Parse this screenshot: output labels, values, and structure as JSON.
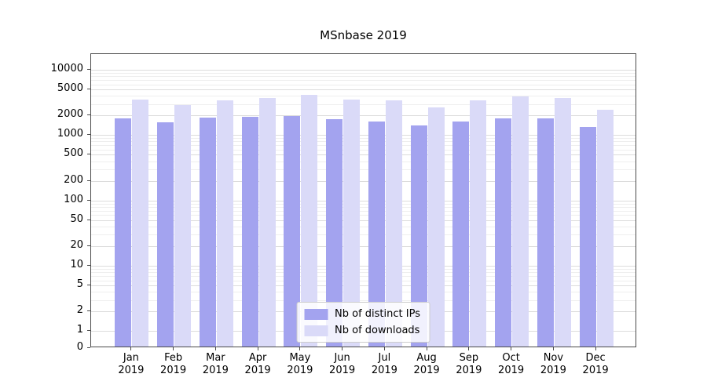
{
  "chart_data": {
    "type": "bar",
    "title": "MSnbase 2019",
    "categories": [
      "Jan",
      "Feb",
      "Mar",
      "Apr",
      "May",
      "Jun",
      "Jul",
      "Aug",
      "Sep",
      "Oct",
      "Nov",
      "Dec"
    ],
    "category_year": "2019",
    "series": [
      {
        "name": "Nb of distinct IPs",
        "color": "#a3a3ef",
        "values": [
          1700,
          1500,
          1750,
          1800,
          1850,
          1650,
          1550,
          1350,
          1550,
          1700,
          1700,
          1250
        ]
      },
      {
        "name": "Nb of downloads",
        "color": "#dadaf8",
        "values": [
          3300,
          2700,
          3200,
          3500,
          3900,
          3300,
          3200,
          2550,
          3200,
          3700,
          3500,
          2300
        ]
      }
    ],
    "yscale": "symlog",
    "yticks": [
      0,
      1,
      2,
      5,
      10,
      20,
      50,
      100,
      200,
      500,
      1000,
      2000,
      5000,
      10000
    ],
    "ylim": [
      0,
      17000
    ],
    "grid": true,
    "legend_position": "lower center"
  }
}
